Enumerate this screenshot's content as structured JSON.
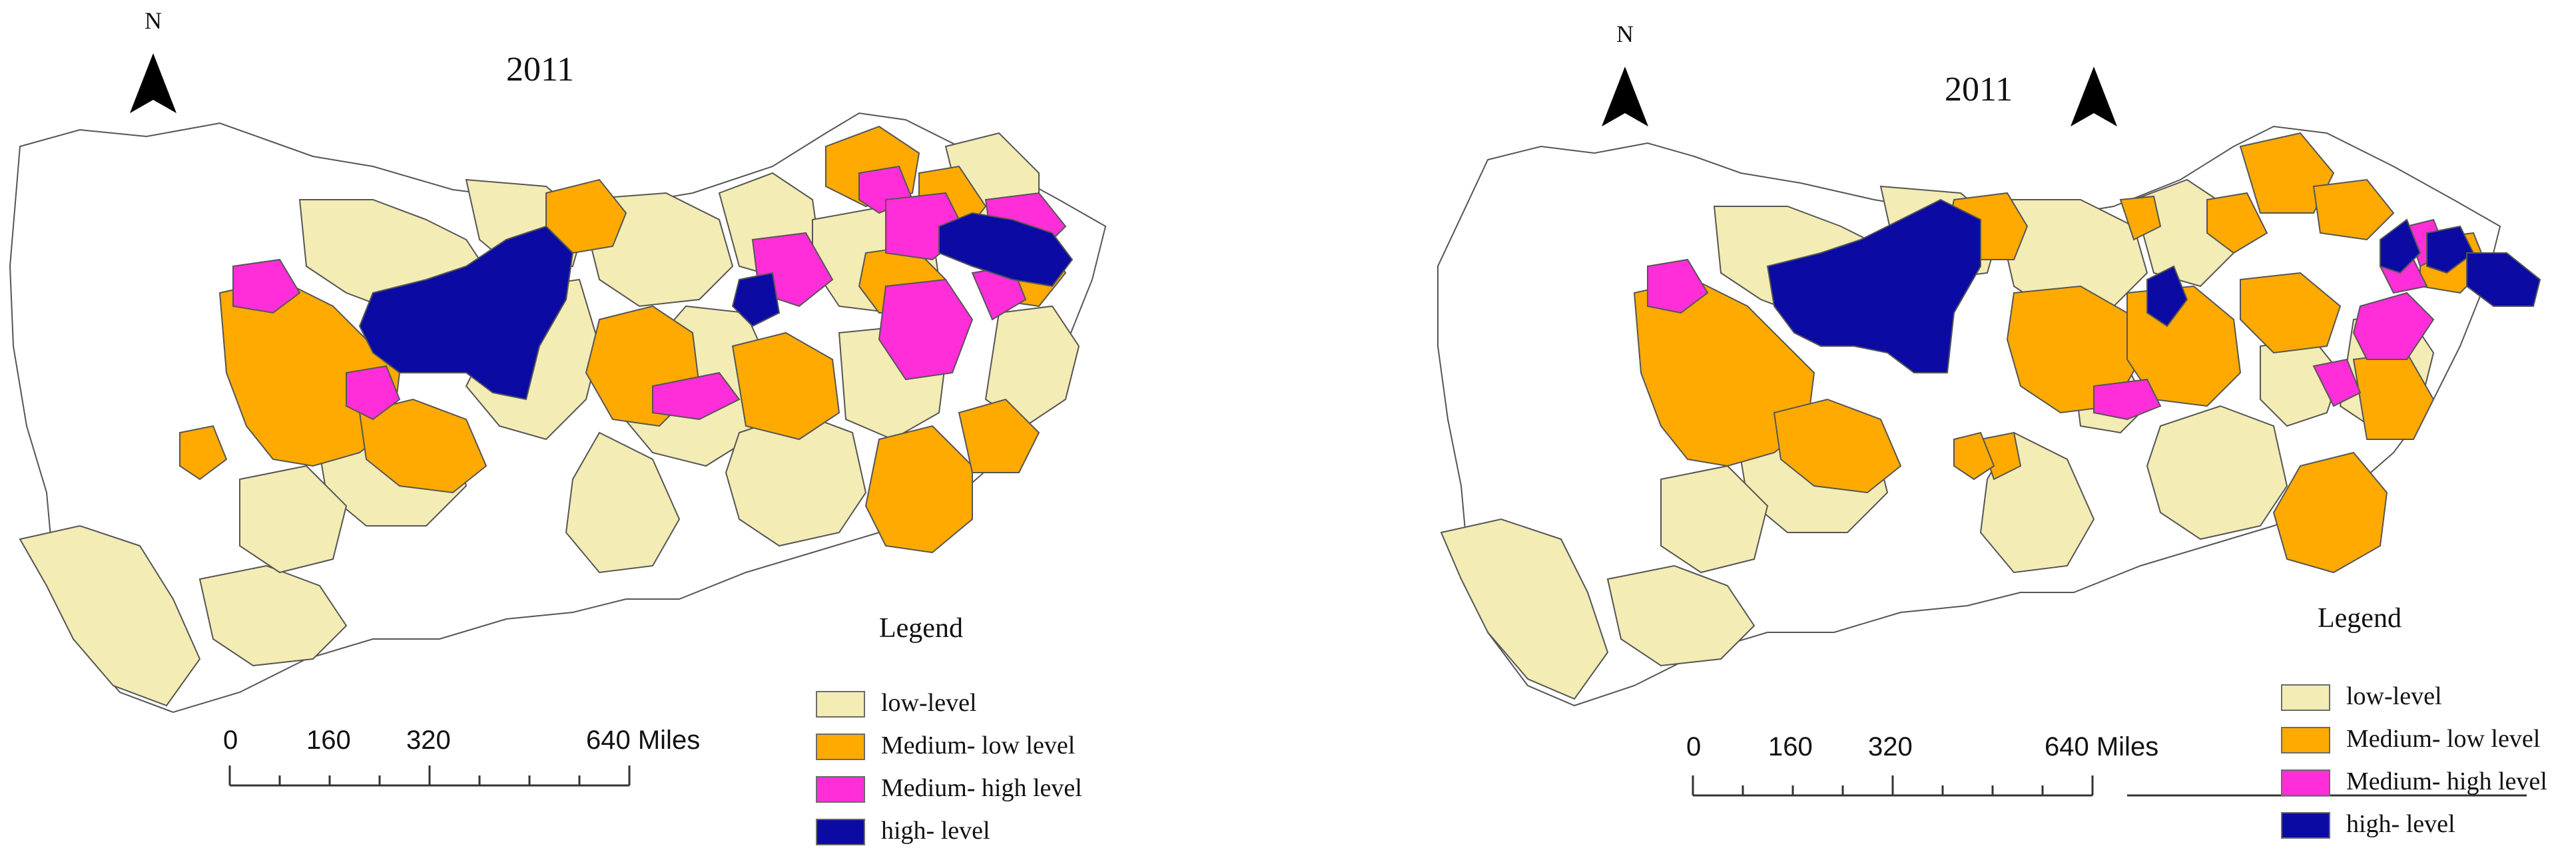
{
  "colors": {
    "low": "#f3ecb4",
    "medium_low": "#ffaa00",
    "medium_high": "#ff2ed8",
    "high": "#0b0ba3",
    "none": "#ffffff",
    "border": "#555555"
  },
  "panels": [
    {
      "north_label": "N",
      "year": "2011",
      "legend": {
        "title": "Legend",
        "items": [
          {
            "label": "low-level",
            "class": "low"
          },
          {
            "label": "Medium- low level",
            "class": "medium_low"
          },
          {
            "label": "Medium- high level",
            "class": "medium_high"
          },
          {
            "label": "high- level",
            "class": "high"
          }
        ]
      },
      "scale": {
        "ticks": [
          "0",
          "160",
          "320",
          "640 Miles"
        ]
      }
    },
    {
      "north_label": "N",
      "year": "2011",
      "legend": {
        "title": "Legend",
        "items": [
          {
            "label": "low-level",
            "class": "low"
          },
          {
            "label": "Medium- low level",
            "class": "medium_low"
          },
          {
            "label": "Medium- high level",
            "class": "medium_high"
          },
          {
            "label": "high- level",
            "class": "high"
          }
        ]
      },
      "scale": {
        "ticks": [
          "0",
          "160",
          "320",
          "640 Miles"
        ]
      }
    }
  ]
}
